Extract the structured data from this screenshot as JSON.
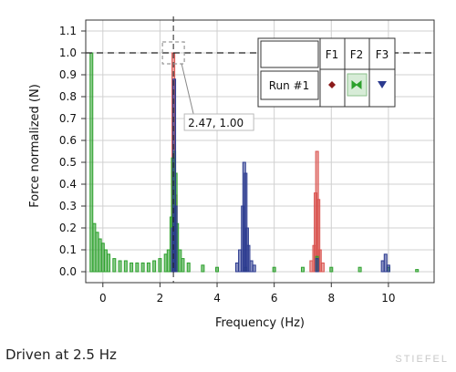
{
  "caption": "Driven at 2.5 Hz",
  "watermark": "STIEFEL",
  "cursor_readout": "2.47, 1.00",
  "chart_data": {
    "type": "bar",
    "title": "",
    "xlabel": "Frequency (Hz)",
    "ylabel": "Force normalized (N)",
    "xlim": [
      -0.6,
      11.6
    ],
    "ylim": [
      -0.05,
      1.15
    ],
    "xticks": [
      0,
      2,
      4,
      6,
      8,
      10
    ],
    "yticks": [
      0.0,
      0.1,
      0.2,
      0.3,
      0.4,
      0.5,
      0.6,
      0.7,
      0.8,
      0.9,
      1.0,
      1.1
    ],
    "grid": true,
    "reference_line_y": 1.0,
    "cursor": {
      "x": 2.47,
      "y": 1.0
    },
    "legend": {
      "placement": "top-right",
      "run_label": "Run #1",
      "columns": [
        "F1",
        "F2",
        "F3"
      ]
    },
    "series": [
      {
        "name": "F1",
        "color": "#d9534f",
        "x": [
          2.47,
          2.55,
          7.3,
          7.4,
          7.45,
          7.5,
          7.55,
          7.6,
          7.7
        ],
        "y": [
          1.0,
          0.35,
          0.05,
          0.12,
          0.36,
          0.55,
          0.33,
          0.1,
          0.04
        ]
      },
      {
        "name": "F2",
        "color": "#2ca02c",
        "x": [
          -0.4,
          -0.3,
          -0.2,
          -0.1,
          0.0,
          0.1,
          0.2,
          0.4,
          0.6,
          0.8,
          1.0,
          1.2,
          1.4,
          1.6,
          1.8,
          2.0,
          2.2,
          2.3,
          2.4,
          2.45,
          2.5,
          2.55,
          2.6,
          2.7,
          2.8,
          3.0,
          3.5,
          4.0,
          5.0,
          6.0,
          7.0,
          7.5,
          8.0,
          9.0,
          10.0,
          11.0
        ],
        "y": [
          1.0,
          0.22,
          0.18,
          0.15,
          0.13,
          0.1,
          0.08,
          0.06,
          0.05,
          0.05,
          0.04,
          0.04,
          0.04,
          0.04,
          0.05,
          0.06,
          0.08,
          0.1,
          0.25,
          0.52,
          0.55,
          0.45,
          0.22,
          0.1,
          0.06,
          0.04,
          0.03,
          0.02,
          0.02,
          0.02,
          0.02,
          0.07,
          0.02,
          0.02,
          0.02,
          0.01
        ]
      },
      {
        "name": "F3",
        "color": "#2b3a8f",
        "x": [
          2.45,
          2.5,
          2.55,
          4.7,
          4.8,
          4.9,
          4.95,
          5.0,
          5.05,
          5.1,
          5.2,
          5.3,
          7.5,
          9.8,
          9.9,
          10.0
        ],
        "y": [
          0.2,
          0.88,
          0.3,
          0.04,
          0.1,
          0.3,
          0.5,
          0.45,
          0.2,
          0.12,
          0.05,
          0.03,
          0.06,
          0.05,
          0.08,
          0.03
        ]
      }
    ]
  }
}
